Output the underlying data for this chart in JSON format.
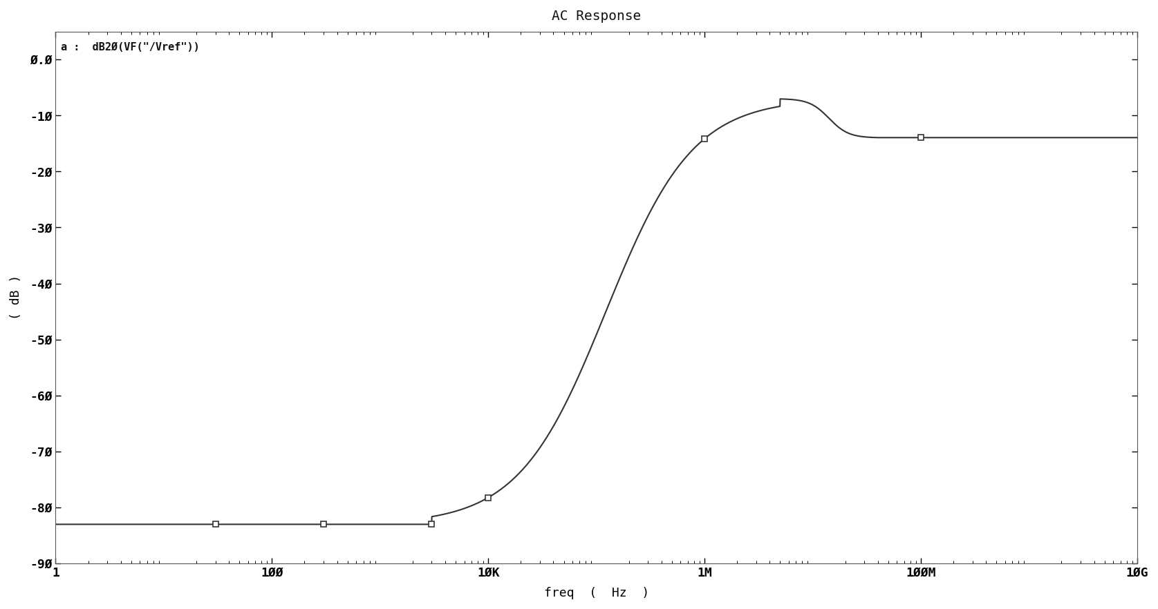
{
  "title": "AC Response",
  "xlabel": "freq  (  Hz  )",
  "ylabel": "( dB )",
  "legend_label": "a :  dB2Ø(VF(\"/Vref\"))",
  "xmin": 1,
  "xmax": 10000000000.0,
  "ymin": -90,
  "ymax": 5,
  "ytick_vals": [
    0,
    -10,
    -20,
    -30,
    -40,
    -50,
    -60,
    -70,
    -80,
    -90
  ],
  "ytick_labels": [
    "Ø.Ø",
    "-1Ø",
    "-2Ø",
    "-3Ø",
    "-4Ø",
    "-5Ø",
    "-6Ø",
    "-7Ø",
    "-8Ø",
    "-9Ø"
  ],
  "xtick_labels": [
    "1",
    "1ØØ",
    "1ØK",
    "1M",
    "1ØØM",
    "1ØG"
  ],
  "xtick_positions": [
    1,
    100,
    10000,
    1000000,
    100000000,
    10000000000
  ],
  "background_color": "#ffffff",
  "plot_bg_color": "#ffffff",
  "line_color": "#333333",
  "marker_x": [
    30,
    300,
    3000,
    10000,
    1000000,
    100000000
  ],
  "marker_y": [
    -83,
    -83,
    -83,
    -83,
    -22,
    -14
  ],
  "curve_low": -83,
  "curve_high": -14,
  "curve_peak": -7,
  "f_start_rise": 3000,
  "f_peak": 5000000,
  "f_settle": 40000000,
  "title_fontsize": 14,
  "label_fontsize": 13,
  "tick_fontsize": 13
}
